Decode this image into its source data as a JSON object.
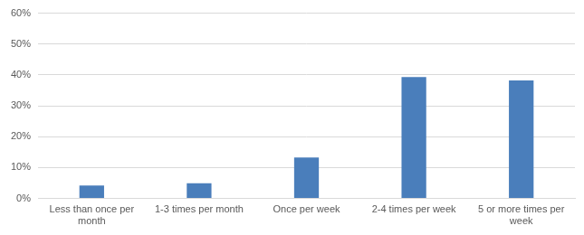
{
  "chart_data": {
    "type": "bar",
    "categories": [
      "Less than once per month",
      "1-3 times per month",
      "Once per week",
      "2-4 times per week",
      "5 or more times per week"
    ],
    "values": [
      4.2,
      4.9,
      13.3,
      39.3,
      38.2
    ],
    "color": "#4a7ebb",
    "ylim": [
      0,
      60
    ],
    "yticks": [
      {
        "value": 0,
        "label": "0%"
      },
      {
        "value": 10,
        "label": "10%"
      },
      {
        "value": 20,
        "label": "20%"
      },
      {
        "value": 30,
        "label": "30%"
      },
      {
        "value": 40,
        "label": "40%"
      },
      {
        "value": 50,
        "label": "50%"
      },
      {
        "value": 60,
        "label": "60%"
      }
    ],
    "grid": true
  }
}
